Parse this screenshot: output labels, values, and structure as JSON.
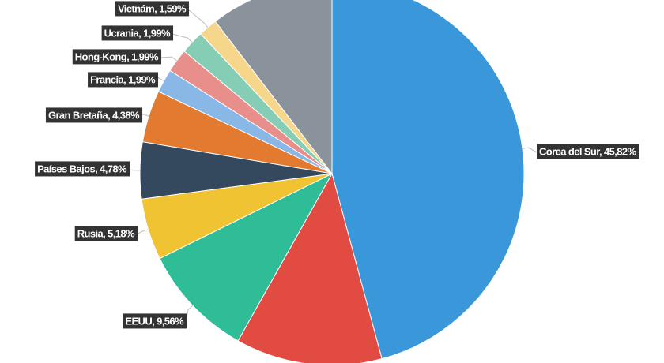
{
  "chart_data": {
    "type": "pie",
    "labels": [
      "Corea del Sur, 45,82%",
      null,
      "EEUU, 9,56%",
      "Rusia, 5,18%",
      "Países Bajos, 4,78%",
      "Gran Bretaña, 4,38%",
      "Francia, 1,99%",
      "Hong-Kong, 1,99%",
      "Ucrania, 1,99%",
      "Vietnám, 1,59%",
      null
    ],
    "values": [
      45.82,
      12.32,
      9.56,
      5.18,
      4.78,
      4.38,
      1.99,
      1.99,
      1.99,
      1.59,
      10.4
    ],
    "colors": [
      "#3a97d9",
      "#e24b42",
      "#2ebd96",
      "#efc332",
      "#34495e",
      "#e27b2f",
      "#8ab8e6",
      "#e98f8b",
      "#86cdb6",
      "#f5d68b",
      "#8a929c"
    ]
  }
}
